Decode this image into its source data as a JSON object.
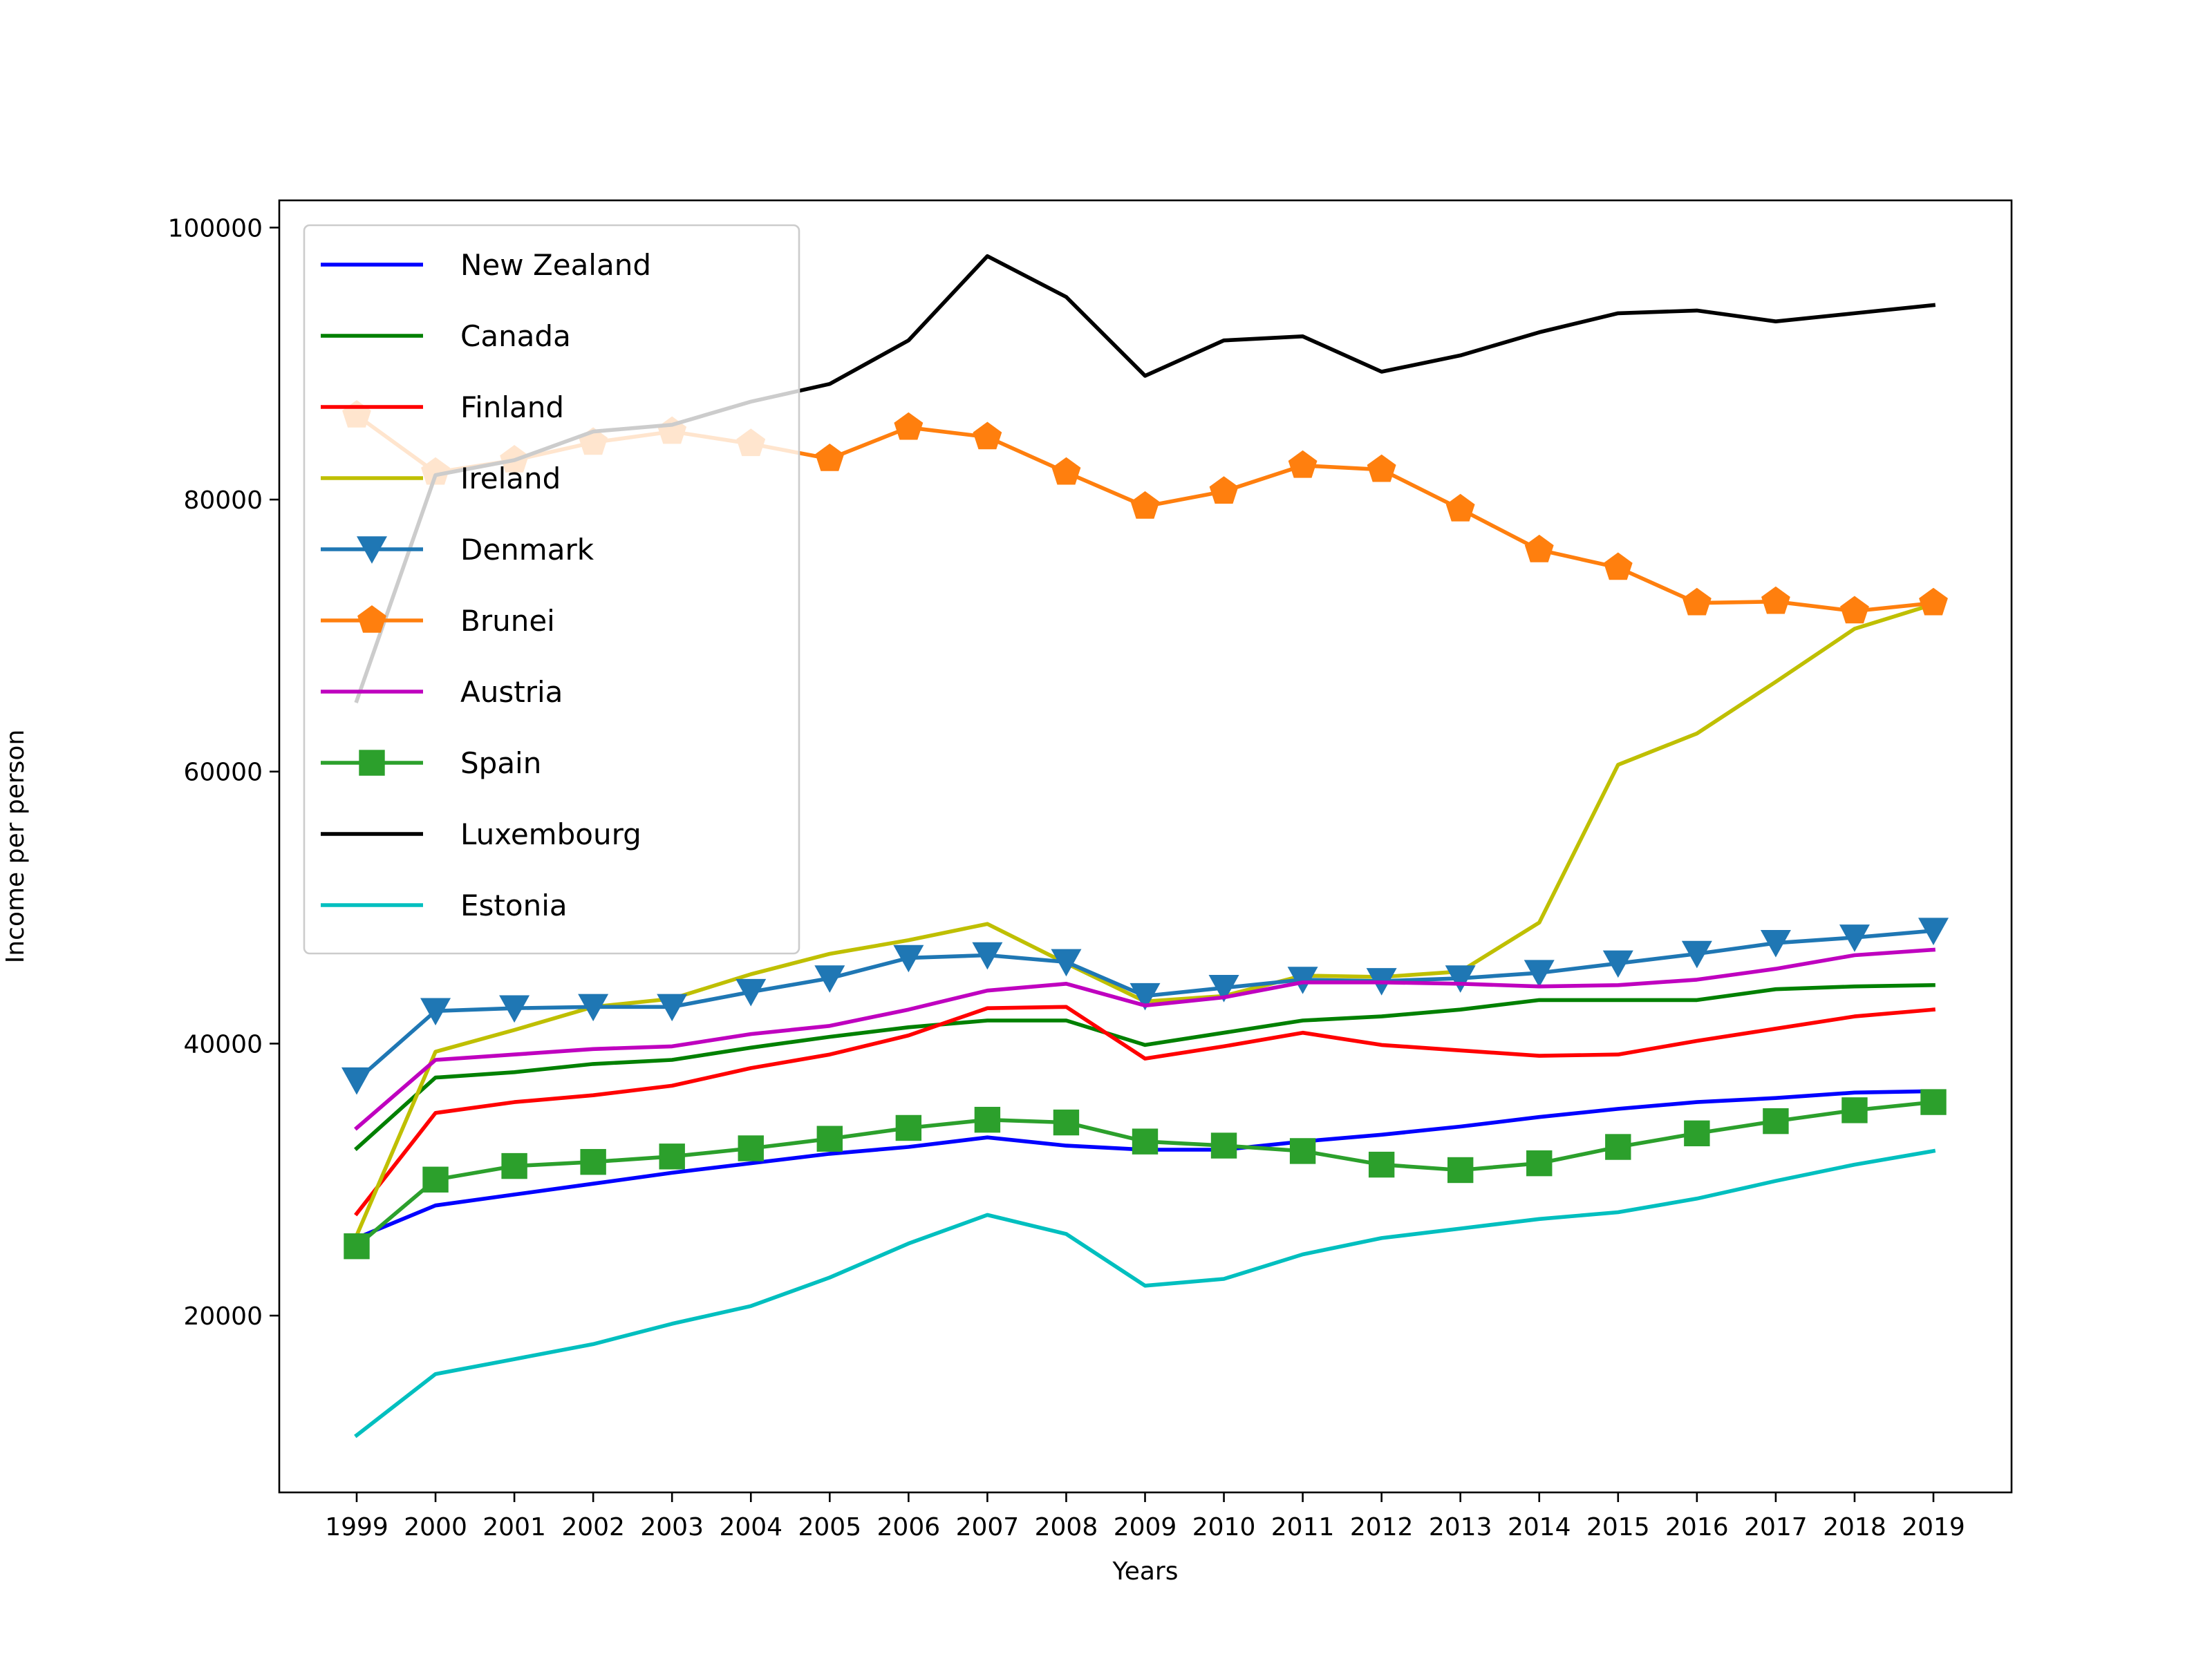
{
  "chart_data": {
    "type": "line",
    "title": "",
    "xlabel": "Years",
    "ylabel": "Income per person",
    "x": [
      "1999",
      "2000",
      "2001",
      "2002",
      "2003",
      "2004",
      "2005",
      "2006",
      "2007",
      "2008",
      "2009",
      "2010",
      "2011",
      "2012",
      "2013",
      "2014",
      "2015",
      "2016",
      "2017",
      "2018",
      "2019"
    ],
    "ylim": [
      7000,
      102000
    ],
    "yticks": [
      20000,
      40000,
      60000,
      80000,
      100000
    ],
    "ytick_labels": [
      "20000",
      "40000",
      "60000",
      "80000",
      "100000"
    ],
    "grid": false,
    "legend": "upper left",
    "series": [
      {
        "name": "New Zealand",
        "color": "#0000ff",
        "marker": "none",
        "values": [
          25700,
          28100,
          28900,
          29700,
          30500,
          31200,
          31900,
          32400,
          33100,
          32500,
          32200,
          32200,
          32800,
          33300,
          33900,
          34600,
          35200,
          35700,
          36000,
          36400,
          36500
        ]
      },
      {
        "name": "Canada",
        "color": "#008000",
        "marker": "none",
        "values": [
          32300,
          37500,
          37900,
          38500,
          38800,
          39700,
          40500,
          41200,
          41700,
          41700,
          39900,
          40800,
          41700,
          42000,
          42500,
          43200,
          43200,
          43200,
          44000,
          44200,
          44300
        ]
      },
      {
        "name": "Finland",
        "color": "#ff0000",
        "marker": "none",
        "values": [
          27500,
          34900,
          35700,
          36200,
          36900,
          38200,
          39200,
          40600,
          42600,
          42700,
          38900,
          39800,
          40800,
          39900,
          39500,
          39100,
          39200,
          40200,
          41100,
          42000,
          42500
        ]
      },
      {
        "name": "Ireland",
        "color": "#bfbf00",
        "marker": "none",
        "values": [
          25900,
          39400,
          41000,
          42700,
          43300,
          45100,
          46600,
          47600,
          48800,
          45900,
          43100,
          43500,
          45000,
          44900,
          45300,
          48900,
          60500,
          62800,
          66600,
          70500,
          72300
        ]
      },
      {
        "name": "Denmark",
        "color": "#1f77b4",
        "marker": "triangle-down",
        "values": [
          37300,
          42400,
          42600,
          42700,
          42700,
          43800,
          44800,
          46300,
          46500,
          46000,
          43500,
          44100,
          44700,
          44600,
          44800,
          45200,
          45900,
          46600,
          47400,
          47800,
          48300
        ]
      },
      {
        "name": "Brunei",
        "color": "#ff7f0e",
        "marker": "pentagon",
        "values": [
          86200,
          82000,
          82900,
          84200,
          85000,
          84100,
          83000,
          85300,
          84600,
          82000,
          79500,
          80600,
          82500,
          82200,
          79300,
          76300,
          75000,
          72400,
          72500,
          71800,
          72400
        ]
      },
      {
        "name": "Austria",
        "color": "#bf00bf",
        "marker": "none",
        "values": [
          33800,
          38800,
          39200,
          39600,
          39800,
          40700,
          41300,
          42500,
          43900,
          44400,
          42800,
          43400,
          44500,
          44500,
          44400,
          44200,
          44300,
          44700,
          45500,
          46500,
          46900
        ]
      },
      {
        "name": "Spain",
        "color": "#2ca02c",
        "marker": "square",
        "values": [
          25100,
          30000,
          31000,
          31300,
          31700,
          32300,
          33000,
          33800,
          34400,
          34200,
          32800,
          32500,
          32100,
          31100,
          30700,
          31200,
          32400,
          33400,
          34300,
          35100,
          35700
        ]
      },
      {
        "name": "Luxembourg",
        "color": "#000000",
        "marker": "none",
        "values": [
          65200,
          81800,
          82900,
          85000,
          85500,
          87200,
          88500,
          91700,
          97900,
          94900,
          89100,
          91700,
          92000,
          89400,
          90600,
          92300,
          93700,
          93900,
          93100,
          93700,
          94300
        ]
      },
      {
        "name": "Estonia",
        "color": "#00bfbf",
        "marker": "none",
        "values": [
          11200,
          15700,
          16800,
          17900,
          19400,
          20700,
          22800,
          25300,
          27400,
          26000,
          22200,
          22700,
          24500,
          25700,
          26400,
          27100,
          27600,
          28600,
          29900,
          31100,
          32100
        ]
      }
    ]
  }
}
